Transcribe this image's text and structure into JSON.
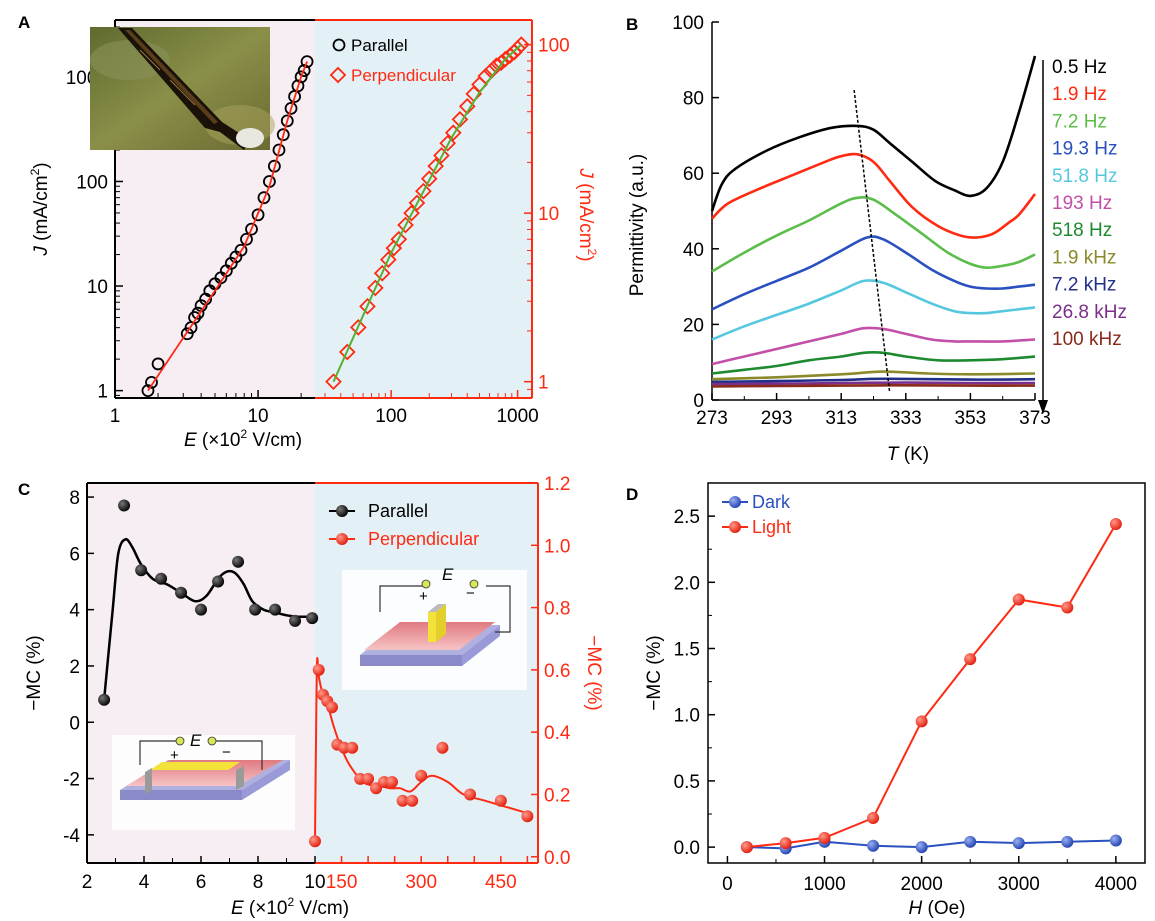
{
  "colors": {
    "black": "#000000",
    "red": "#ff2a12",
    "green": "#55b030",
    "blue": "#2a50c0",
    "pink_bg": "#f7eef3",
    "blue_bg": "#e3f1f7"
  },
  "inset_icons": [
    "photo-inset",
    "device-schematic-parallel",
    "device-schematic-perpendicular"
  ],
  "chart_data": [
    {
      "panel": "A",
      "type": "scatter",
      "xlabel": "E (×10² V/cm)",
      "scale": "log-log",
      "left": {
        "ylabel": "J (mA/cm²)",
        "xlim": [
          1,
          25
        ],
        "ylim": [
          0.85,
          3500
        ],
        "xticks": [
          1,
          10
        ],
        "xtick_labels": [
          "1",
          "10"
        ],
        "yticks": [
          1,
          10,
          100,
          1000
        ],
        "ytick_labels": [
          "1",
          "10",
          "100",
          "1000"
        ],
        "series": {
          "name": "Parallel",
          "x": [
            1.7,
            1.8,
            2.0,
            3.2,
            3.4,
            3.6,
            3.8,
            4.0,
            4.3,
            4.6,
            5.0,
            5.5,
            6.0,
            6.5,
            7.0,
            7.6,
            8.3,
            9.0,
            10.0,
            11.0,
            12.0,
            13.0,
            14.0,
            15.0,
            16.0,
            17.0,
            18.0,
            19.0,
            20.0,
            21.0,
            22.0
          ],
          "y": [
            1.0,
            1.2,
            1.8,
            3.5,
            4.0,
            5.0,
            5.5,
            6.5,
            7.5,
            9.0,
            10.5,
            12.0,
            14.0,
            16.5,
            19.0,
            22.0,
            28.0,
            35.0,
            48.0,
            70.0,
            100.0,
            140.0,
            200.0,
            280.0,
            380.0,
            500.0,
            650.0,
            820.0,
            1000.0,
            1150.0,
            1400.0
          ],
          "fit_x": [
            1.7,
            3.0,
            5.0,
            8.0,
            12.0,
            16.0,
            20.0,
            22.0
          ],
          "fit_y": [
            1.0,
            3.2,
            9.0,
            24.0,
            90.0,
            380.0,
            1000.0,
            1400.0
          ]
        }
      },
      "right": {
        "ylabel": "J (mA/cm²)",
        "xlim": [
          25,
          1300
        ],
        "ylim": [
          0.8,
          140
        ],
        "xticks": [
          100,
          1000
        ],
        "xtick_labels": [
          "100",
          "1000"
        ],
        "yticks": [
          1,
          10,
          100
        ],
        "ytick_labels": [
          "1",
          "10",
          "100"
        ],
        "series": {
          "name": "Perpendicular",
          "x": [
            35,
            45,
            55,
            65,
            75,
            85,
            95,
            105,
            115,
            130,
            145,
            160,
            180,
            200,
            225,
            250,
            280,
            310,
            350,
            400,
            450,
            500,
            560,
            620,
            680,
            740,
            800,
            870,
            940,
            1000,
            1070
          ],
          "y": [
            1.0,
            1.5,
            2.1,
            2.8,
            3.6,
            4.4,
            5.3,
            6.2,
            7.0,
            8.5,
            10.0,
            11.5,
            13.5,
            16.0,
            19.0,
            22.0,
            26.0,
            30.0,
            36.0,
            43.0,
            51.0,
            58.0,
            65.0,
            70.0,
            75.0,
            78.0,
            82.0,
            86.0,
            90.0,
            95.0,
            100.0
          ],
          "fit_x": [
            35,
            100,
            300,
            500,
            800,
            1070
          ],
          "fit_y": [
            1.0,
            5.8,
            28.0,
            52.0,
            82.0,
            100.0
          ]
        }
      },
      "legend": [
        "Parallel",
        "Perpendicular"
      ]
    },
    {
      "panel": "B",
      "type": "line",
      "xlabel": "T (K)",
      "ylabel": "Permittivity (a.u.)",
      "xlim": [
        273,
        373
      ],
      "ylim": [
        0,
        100
      ],
      "xticks": [
        273,
        293,
        313,
        333,
        353,
        373
      ],
      "yticks": [
        0,
        20,
        40,
        60,
        80,
        100
      ],
      "series": [
        {
          "name": "0.5 Hz",
          "color": "#000000",
          "x": [
            273,
            276,
            280,
            290,
            300,
            310,
            318,
            323,
            328,
            335,
            342,
            348,
            353,
            358,
            363,
            368,
            373
          ],
          "y": [
            50,
            57,
            61,
            66,
            69.5,
            72,
            72.5,
            71.5,
            68,
            63,
            58,
            55.5,
            54,
            56,
            63,
            76,
            91
          ]
        },
        {
          "name": "1.9 Hz",
          "color": "#ff2a12",
          "x": [
            273,
            278,
            288,
            298,
            308,
            313,
            318,
            323,
            328,
            335,
            343,
            350,
            355,
            360,
            365,
            368,
            373
          ],
          "y": [
            48,
            52,
            56,
            59.5,
            63,
            64.5,
            65,
            63,
            58,
            51,
            46,
            43.5,
            43,
            44,
            47,
            49,
            54.5
          ]
        },
        {
          "name": "7.2 Hz",
          "color": "#5cbd4a",
          "x": [
            273,
            283,
            293,
            303,
            313,
            318,
            323,
            330,
            338,
            346,
            353,
            358,
            363,
            368,
            373
          ],
          "y": [
            34,
            39,
            43.5,
            47.5,
            52,
            53.5,
            53,
            49,
            44,
            39,
            36,
            35,
            35.5,
            36.5,
            38.5
          ]
        },
        {
          "name": "19.3 Hz",
          "color": "#2a50c0",
          "x": [
            273,
            283,
            293,
            303,
            313,
            321,
            326,
            333,
            341,
            348,
            353,
            358,
            363,
            368,
            373
          ],
          "y": [
            24,
            28,
            31.5,
            35,
            39.5,
            43,
            42.5,
            39,
            34.5,
            31.5,
            30,
            29.5,
            29.5,
            30,
            30.5
          ]
        },
        {
          "name": "51.8 Hz",
          "color": "#55c8e0",
          "x": [
            273,
            283,
            293,
            303,
            313,
            320,
            326,
            333,
            341,
            348,
            353,
            358,
            363,
            368,
            373
          ],
          "y": [
            16,
            19.5,
            22.5,
            25.5,
            29,
            31.5,
            31,
            28.5,
            25.5,
            23.5,
            23,
            23,
            23.5,
            24,
            24.5
          ]
        },
        {
          "name": "193 Hz",
          "color": "#c24fa8",
          "x": [
            273,
            283,
            293,
            303,
            313,
            320,
            326,
            333,
            341,
            348,
            353,
            363,
            373
          ],
          "y": [
            9.5,
            11.5,
            13.5,
            15.5,
            17.5,
            19,
            18.8,
            17.5,
            16,
            15.5,
            15.5,
            15.5,
            16
          ]
        },
        {
          "name": "518 Hz",
          "color": "#1e8a30",
          "x": [
            273,
            283,
            293,
            303,
            313,
            320,
            326,
            333,
            343,
            353,
            363,
            373
          ],
          "y": [
            7,
            8,
            9,
            10.5,
            11.5,
            12.5,
            12.5,
            11.5,
            10.5,
            10.5,
            10.8,
            11.5
          ]
        },
        {
          "name": "1.9 kHz",
          "color": "#8a8a2a",
          "x": [
            273,
            293,
            313,
            326,
            340,
            353,
            373
          ],
          "y": [
            5.5,
            6,
            6.8,
            7.5,
            7,
            6.8,
            7
          ]
        },
        {
          "name": "7.2 kHz",
          "color": "#1f2f8a",
          "x": [
            273,
            293,
            313,
            326,
            353,
            373
          ],
          "y": [
            4.8,
            5,
            5.3,
            5.6,
            5.4,
            5.5
          ]
        },
        {
          "name": "26.8 kHz",
          "color": "#7b2f8a",
          "x": [
            273,
            293,
            313,
            333,
            353,
            373
          ],
          "y": [
            4.2,
            4.3,
            4.5,
            4.6,
            4.5,
            4.5
          ]
        },
        {
          "name": "100 kHz",
          "color": "#8a2a1a",
          "x": [
            273,
            293,
            313,
            333,
            353,
            373
          ],
          "y": [
            3.6,
            3.7,
            3.8,
            3.9,
            3.8,
            3.8
          ]
        }
      ],
      "trend_line": {
        "x": [
          317,
          328
        ],
        "y": [
          82,
          2
        ]
      }
    },
    {
      "panel": "C",
      "type": "scatter",
      "xlabel": "E (×10² V/cm)",
      "left": {
        "ylabel": "−MC (%)",
        "xlim": [
          2,
          10
        ],
        "ylim": [
          -5,
          8.5
        ],
        "xticks": [
          2,
          4,
          6,
          8,
          10
        ],
        "yticks": [
          -4,
          -2,
          0,
          2,
          4,
          6,
          8
        ],
        "ytick_labels": [
          "-4",
          "-2",
          "0",
          "2",
          "4",
          "6",
          "8"
        ],
        "series": {
          "name": "Parallel",
          "x": [
            2.6,
            3.3,
            3.9,
            4.6,
            5.3,
            6.0,
            6.6,
            7.3,
            7.9,
            8.6,
            9.3,
            9.9
          ],
          "y": [
            0.8,
            7.7,
            5.4,
            5.1,
            4.6,
            4.0,
            5.0,
            5.7,
            4.0,
            4.0,
            3.6,
            3.7
          ],
          "curve_x": [
            2.6,
            2.9,
            3.1,
            3.35,
            3.6,
            3.9,
            4.3,
            4.8,
            5.3,
            5.8,
            6.2,
            6.6,
            6.9,
            7.2,
            7.5,
            7.8,
            8.2,
            8.6,
            9.0,
            9.4,
            9.9
          ],
          "curve_y": [
            0.8,
            4.0,
            6.0,
            6.5,
            6.2,
            5.6,
            5.1,
            4.9,
            4.6,
            4.3,
            4.5,
            5.1,
            5.35,
            5.3,
            4.9,
            4.3,
            4.0,
            3.9,
            3.8,
            3.75,
            3.75
          ]
        }
      },
      "right": {
        "ylabel": "−MC (%)",
        "xlim": [
          100,
          520
        ],
        "ylim": [
          -0.02,
          1.2
        ],
        "xticks": [
          150,
          200,
          250,
          300,
          350,
          400,
          450,
          500
        ],
        "xtick_labels": [
          "150",
          "",
          "",
          "300",
          "",
          "",
          "450",
          ""
        ],
        "yticks": [
          0.0,
          0.2,
          0.4,
          0.6,
          0.8,
          1.0,
          1.2
        ],
        "ytick_labels": [
          "0.0",
          "0.2",
          "0.4",
          "0.6",
          "0.8",
          "1.0",
          "1.2"
        ],
        "series": {
          "name": "Perpendicular",
          "x": [
            100,
            107,
            115,
            123,
            132,
            142,
            155,
            170,
            185,
            200,
            215,
            230,
            245,
            265,
            283,
            300,
            340,
            392,
            450,
            500
          ],
          "y": [
            0.05,
            0.6,
            0.52,
            0.5,
            0.48,
            0.36,
            0.35,
            0.35,
            0.25,
            0.25,
            0.22,
            0.24,
            0.24,
            0.18,
            0.18,
            0.26,
            0.35,
            0.2,
            0.18,
            0.13
          ],
          "curve_x": [
            100,
            102,
            104,
            107,
            115,
            125,
            135,
            145,
            160,
            175,
            190,
            205,
            220,
            240,
            260,
            280,
            300,
            320,
            350,
            380,
            420,
            460,
            500
          ],
          "curve_y": [
            0.05,
            0.4,
            0.63,
            0.58,
            0.52,
            0.48,
            0.42,
            0.37,
            0.31,
            0.27,
            0.24,
            0.23,
            0.23,
            0.22,
            0.22,
            0.21,
            0.24,
            0.26,
            0.24,
            0.2,
            0.18,
            0.16,
            0.14
          ]
        }
      },
      "legend": [
        "Parallel",
        "Perpendicular"
      ],
      "inset_label": "E",
      "inset_signs": [
        "+",
        "−"
      ]
    },
    {
      "panel": "D",
      "type": "line",
      "xlabel": "H (Oe)",
      "ylabel": "−MC (%)",
      "xlim": [
        -200,
        4300
      ],
      "ylim": [
        -0.12,
        2.75
      ],
      "xticks": [
        0,
        1000,
        2000,
        3000,
        4000
      ],
      "yticks": [
        0.0,
        0.5,
        1.0,
        1.5,
        2.0,
        2.5
      ],
      "ytick_labels": [
        "0.0",
        "0.5",
        "1.0",
        "1.5",
        "2.0",
        "2.5"
      ],
      "series": [
        {
          "name": "Dark",
          "color": "#2a50c0",
          "x": [
            200,
            600,
            1000,
            1500,
            2000,
            2500,
            3000,
            3500,
            4000
          ],
          "y": [
            0.0,
            -0.01,
            0.04,
            0.01,
            0.0,
            0.04,
            0.03,
            0.04,
            0.05
          ]
        },
        {
          "name": "Light",
          "color": "#ff2a12",
          "x": [
            200,
            600,
            1000,
            1500,
            2000,
            2500,
            3000,
            3500,
            4000
          ],
          "y": [
            0.0,
            0.03,
            0.07,
            0.22,
            0.95,
            1.42,
            1.87,
            1.81,
            2.44
          ]
        }
      ]
    }
  ],
  "panels": {
    "A": {
      "letter": "A",
      "xlabel_pre": "E",
      "xlabel_post": " (×10",
      "xlabel_sup": "2",
      "xlabel_end": " V/cm)",
      "ylabel_italic": "J",
      "ylabel_mid": " (mA/cm",
      "ylabel_sup": "2",
      "ylabel_end": ")",
      "legend_parallel": "Parallel",
      "legend_perpendicular": "Perpendicular"
    },
    "B": {
      "letter": "B",
      "xlabel_italic": "T",
      "xlabel_rest": " (K)",
      "ylabel": "Permittivity (a.u.)"
    },
    "C": {
      "letter": "C",
      "xlabel_pre": "E",
      "xlabel_post": " (×10",
      "xlabel_sup": "2",
      "xlabel_end": " V/cm)",
      "ylabel": "−MC (%)",
      "ylabel_right": "−MC (%)",
      "legend_parallel": "Parallel",
      "legend_perpendicular": "Perpendicular"
    },
    "D": {
      "letter": "D",
      "xlabel_italic": "H",
      "xlabel_rest": " (Oe)",
      "ylabel": "−MC (%)",
      "legend_dark": "Dark",
      "legend_light": "Light"
    }
  }
}
